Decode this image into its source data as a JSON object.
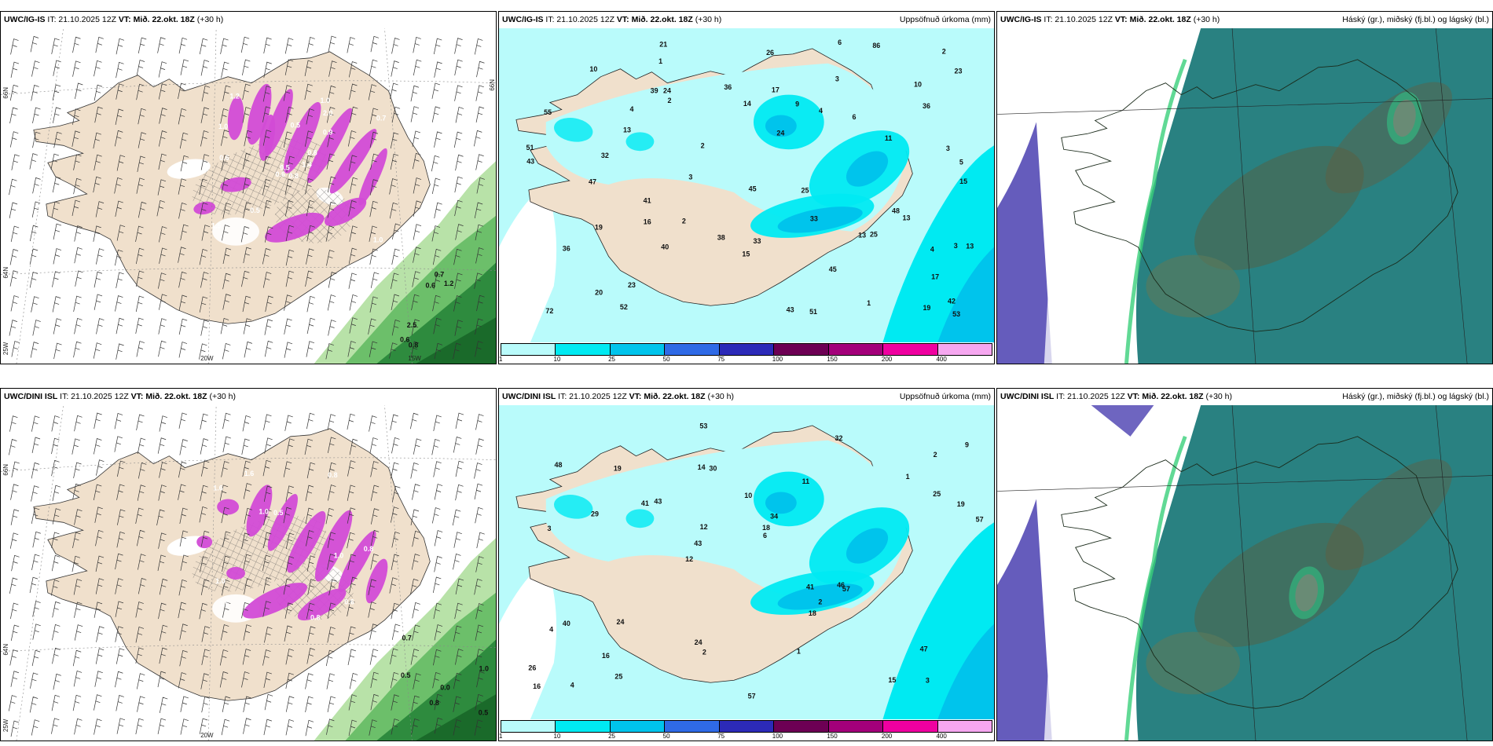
{
  "rows": [
    {
      "model": "UWC/IG-IS",
      "it_label": "IT: 21.10.2025 12Z",
      "vt_label": "VT: Mið. 22.okt. 18Z",
      "lead": "(+30 h)"
    },
    {
      "model": "UWC/DINI ISL",
      "it_label": "IT: 21.10.2025 12Z",
      "vt_label": "VT: Mið. 22.okt. 18Z",
      "lead": "(+30 h)"
    }
  ],
  "precip_title": "Uppsöfnuð úrkoma (mm)",
  "cloud_title": "Háský (gr.), miðský (fj.bl.) og lágský (bl.)",
  "colorbar": {
    "ticks": [
      "1",
      "10",
      "25",
      "50",
      "75",
      "100",
      "150",
      "200",
      "400"
    ],
    "colors": [
      "#b9fbfb",
      "#00eaf2",
      "#00c4ec",
      "#2f6ae6",
      "#2c2ab8",
      "#6d0054",
      "#a3007a",
      "#ef00a0",
      "#f6a7f0"
    ]
  },
  "axis_labels": {
    "lat66": "66N",
    "lat64": "64N",
    "lon25": "25W",
    "lon20": "20W",
    "lon15": "15W"
  },
  "colors": {
    "land": "#f0e0cc",
    "sea_precip": "#b9fbfb",
    "sea_precip_light": "#ffffff",
    "snow": "#d24bd6",
    "green_dark": "#1a6a2a",
    "green_light": "#b8e2a8",
    "cloud_high": "#1d7a7a",
    "cloud_mid": "#4a7a5e",
    "cloud_low": "#4a3fb0"
  },
  "precip_values": {
    "row0": [
      "2",
      "3",
      "4",
      "5",
      "3",
      "3",
      "2",
      "6",
      "4",
      "10",
      "13",
      "13",
      "11",
      "40",
      "36",
      "45",
      "41",
      "51",
      "21",
      "36",
      "42",
      "17",
      "20",
      "19",
      "24",
      "86",
      "72",
      "45",
      "43",
      "23",
      "52",
      "53",
      "47",
      "26",
      "32",
      "43",
      "15",
      "33",
      "36",
      "48",
      "51",
      "55",
      "38",
      "33",
      "17",
      "10",
      "9",
      "6",
      "24",
      "23",
      "19",
      "4",
      "1",
      "3",
      "16",
      "15",
      "14",
      "13",
      "25",
      "25",
      "13",
      "2",
      "2",
      "1",
      "39"
    ],
    "row1": [
      "3",
      "3",
      "2",
      "12",
      "11",
      "4",
      "14",
      "10",
      "40",
      "43",
      "26",
      "16",
      "30",
      "34",
      "57",
      "48",
      "53",
      "57",
      "41",
      "25",
      "43",
      "24",
      "12",
      "19",
      "32",
      "24",
      "15",
      "47",
      "46",
      "57",
      "41",
      "29",
      "18",
      "25",
      "19",
      "18",
      "16",
      "2",
      "6",
      "4",
      "1",
      "9",
      "2",
      "1"
    ]
  },
  "snow_values": {
    "row0": [
      "0.8",
      "1.0",
      "0.5",
      "1.5",
      "0.8",
      "0.5",
      "1.0",
      "0.5",
      "2.0",
      "1.4",
      "1.2",
      "1.0",
      "0.6",
      "0.7",
      "0.6",
      "0.9",
      "0.8",
      "0.7",
      "1.2",
      "2.5",
      "0.6",
      "0.6"
    ],
    "row1": [
      "1.0",
      "0.8",
      "1.5",
      "1.6",
      "0.5",
      "0.6",
      "1.0",
      "0.8",
      "1.0",
      "0.8",
      "1.6",
      "0.5",
      "0.7",
      "0.5",
      "0.8",
      "1.0",
      "0.0"
    ]
  }
}
